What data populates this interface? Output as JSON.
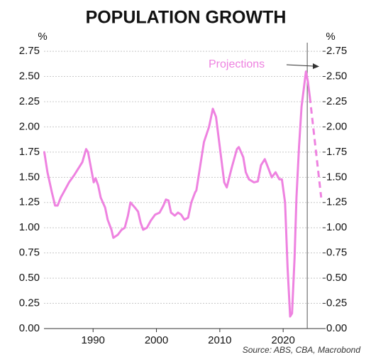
{
  "chart_data": {
    "type": "line",
    "title": "POPULATION GROWTH",
    "ylabel": "%",
    "y2label": "%",
    "source": "Source: ABS, CBA, Macrobond",
    "annotation": "Projections",
    "vline": 2023.8,
    "xlim": [
      1982.25,
      2026.25
    ],
    "xticks": [
      1990,
      2000,
      2010,
      2020
    ],
    "ylim": [
      0,
      2.8
    ],
    "yticks": [
      {
        "value": 0,
        "label": "0.00"
      },
      {
        "value": 0.25,
        "label": "0.25"
      },
      {
        "value": 0.5,
        "label": "0.50"
      },
      {
        "value": 0.75,
        "label": "0.75"
      },
      {
        "value": 1,
        "label": "1.00"
      },
      {
        "value": 1.25,
        "label": "1.25"
      },
      {
        "value": 1.5,
        "label": "1.50"
      },
      {
        "value": 1.75,
        "label": "1.75"
      },
      {
        "value": 2,
        "label": "2.00"
      },
      {
        "value": 2.25,
        "label": "2.25"
      },
      {
        "value": 2.5,
        "label": "2.50"
      },
      {
        "value": 2.75,
        "label": "2.75"
      }
    ],
    "y2lim": [
      0,
      2.8
    ],
    "y2ticks": [
      {
        "value": 0,
        "label": "0.00"
      },
      {
        "value": 0.25,
        "label": "0.25"
      },
      {
        "value": 0.5,
        "label": "0.50"
      },
      {
        "value": 0.75,
        "label": "0.75"
      },
      {
        "value": 1,
        "label": "1.00"
      },
      {
        "value": 1.25,
        "label": "1.25"
      },
      {
        "value": 1.5,
        "label": "1.50"
      },
      {
        "value": 1.75,
        "label": "1.75"
      },
      {
        "value": 2,
        "label": "2.00"
      },
      {
        "value": 2.25,
        "label": "2.25"
      },
      {
        "value": 2.5,
        "label": "2.50"
      },
      {
        "value": 2.75,
        "label": "2.75"
      }
    ],
    "grid": true,
    "series": [
      {
        "color": "#ee82e0",
        "dashed": false,
        "x": [
          1982.3,
          1982.8,
          1983.5,
          1984.0,
          1984.4,
          1984.9,
          1985.6,
          1986.2,
          1987.0,
          1987.6,
          1988.3,
          1988.9,
          1989.2,
          1989.8,
          1990.1,
          1990.4,
          1990.8,
          1991.2,
          1991.9,
          1992.3,
          1992.9,
          1993.2,
          1993.9,
          1994.5,
          1995.0,
          1995.5,
          1995.9,
          1996.6,
          1997.1,
          1997.5,
          1997.9,
          1998.5,
          1999.1,
          1999.8,
          2000.5,
          2001.1,
          2001.5,
          2001.9,
          2002.3,
          2002.9,
          2003.4,
          2003.9,
          2004.4,
          2005.0,
          2005.5,
          2006.1,
          2006.3,
          2007.5,
          2008.3,
          2008.9,
          2009.4,
          2010.0,
          2010.7,
          2011.1,
          2011.9,
          2012.7,
          2013.0,
          2013.7,
          2014.1,
          2014.6,
          2015.4,
          2016.0,
          2016.5,
          2017.1,
          2017.6,
          2018.2,
          2018.8,
          2019.4,
          2019.8,
          2020.3,
          2020.7,
          2021.1,
          2021.4,
          2021.8,
          2022.1,
          2022.5,
          2022.9,
          2023.4,
          2023.6,
          2023.9,
          2024.2
        ],
        "values": [
          1.75,
          1.55,
          1.35,
          1.22,
          1.22,
          1.3,
          1.38,
          1.45,
          1.52,
          1.58,
          1.65,
          1.78,
          1.75,
          1.55,
          1.45,
          1.49,
          1.42,
          1.3,
          1.2,
          1.08,
          0.98,
          0.9,
          0.93,
          0.98,
          1.0,
          1.12,
          1.25,
          1.2,
          1.16,
          1.05,
          0.98,
          1.0,
          1.07,
          1.13,
          1.15,
          1.22,
          1.28,
          1.27,
          1.15,
          1.12,
          1.15,
          1.13,
          1.08,
          1.1,
          1.25,
          1.35,
          1.37,
          1.85,
          2.0,
          2.18,
          2.1,
          1.8,
          1.45,
          1.4,
          1.6,
          1.78,
          1.8,
          1.7,
          1.55,
          1.48,
          1.45,
          1.46,
          1.62,
          1.68,
          1.6,
          1.5,
          1.55,
          1.48,
          1.48,
          1.25,
          0.6,
          0.12,
          0.15,
          0.7,
          1.3,
          1.8,
          2.2,
          2.45,
          2.55,
          2.45,
          2.3
        ]
      },
      {
        "color": "#ee82e0",
        "dashed": true,
        "x": [
          2024.2,
          2026.0
        ],
        "values": [
          2.3,
          1.3
        ]
      }
    ]
  }
}
